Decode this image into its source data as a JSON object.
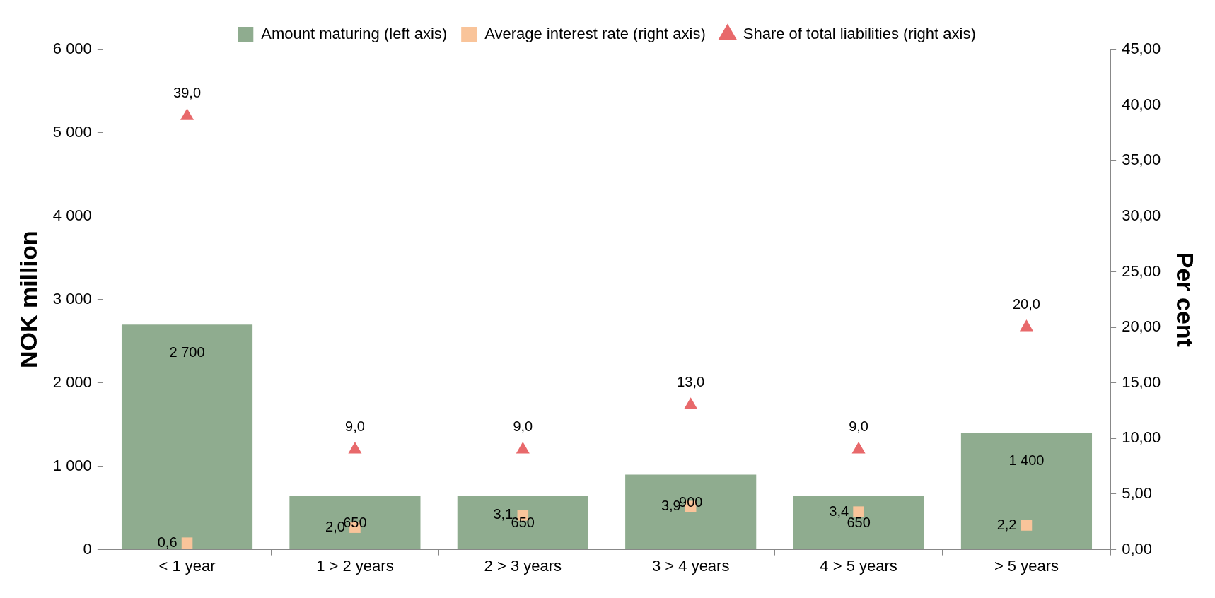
{
  "chart_data": {
    "type": "bar",
    "categories": [
      "< 1 year",
      "1 > 2 years",
      "2 > 3 years",
      "3 > 4 years",
      "4 > 5 years",
      "> 5 years"
    ],
    "ylabel": "NOK million",
    "y2label": "Per cent",
    "ylim": [
      0,
      6000
    ],
    "yticks": [
      {
        "value": 0,
        "label": "0"
      },
      {
        "value": 1000,
        "label": "1 000"
      },
      {
        "value": 2000,
        "label": "2 000"
      },
      {
        "value": 3000,
        "label": "3 000"
      },
      {
        "value": 4000,
        "label": "4 000"
      },
      {
        "value": 5000,
        "label": "5 000"
      },
      {
        "value": 6000,
        "label": "6 000"
      }
    ],
    "y2lim": [
      0,
      45
    ],
    "y2ticks": [
      {
        "value": 0,
        "label": "0,00"
      },
      {
        "value": 5,
        "label": "5,00"
      },
      {
        "value": 10,
        "label": "10,00"
      },
      {
        "value": 15,
        "label": "15,00"
      },
      {
        "value": 20,
        "label": "20,00"
      },
      {
        "value": 25,
        "label": "25,00"
      },
      {
        "value": 30,
        "label": "30,00"
      },
      {
        "value": 35,
        "label": "35,00"
      },
      {
        "value": 40,
        "label": "40,00"
      },
      {
        "value": 45,
        "label": "45,00"
      }
    ],
    "grid": false,
    "legend": "top",
    "series": [
      {
        "name": "Amount maturing (left axis)",
        "color": "#8fac8f",
        "values": [
          2700,
          650,
          650,
          900,
          650,
          1400
        ],
        "value_labels": [
          "2 700",
          "650",
          "650",
          "900",
          "650",
          "1 400"
        ]
      },
      {
        "name": "Average interest rate (right axis)",
        "type": "scatter",
        "axis": "y2",
        "marker": "square",
        "color": "#f9c49a",
        "x": [
          "< 1 year",
          "1 > 2 years",
          "2 > 3 years",
          "3 > 4 years",
          "4 > 5 years",
          "> 5 years"
        ],
        "values": [
          0.6,
          2.0,
          3.1,
          3.9,
          3.4,
          2.2
        ],
        "value_labels": [
          "0,6",
          "2,0",
          "3,1",
          "3,9",
          "3,4",
          "2,2"
        ]
      },
      {
        "name": "Share of total liabilities (right axis)",
        "type": "scatter",
        "axis": "y2",
        "marker": "triangle",
        "color": "#e8696b",
        "x": [
          "< 1 year",
          "1 > 2 years",
          "2 > 3 years",
          "3 > 4 years",
          "4 > 5 years",
          "> 5 years"
        ],
        "values": [
          39,
          9,
          9,
          13,
          9,
          20
        ],
        "value_labels": [
          "39,0",
          "9,0",
          "9,0",
          "13,0",
          "9,0",
          "20,0"
        ]
      }
    ]
  }
}
